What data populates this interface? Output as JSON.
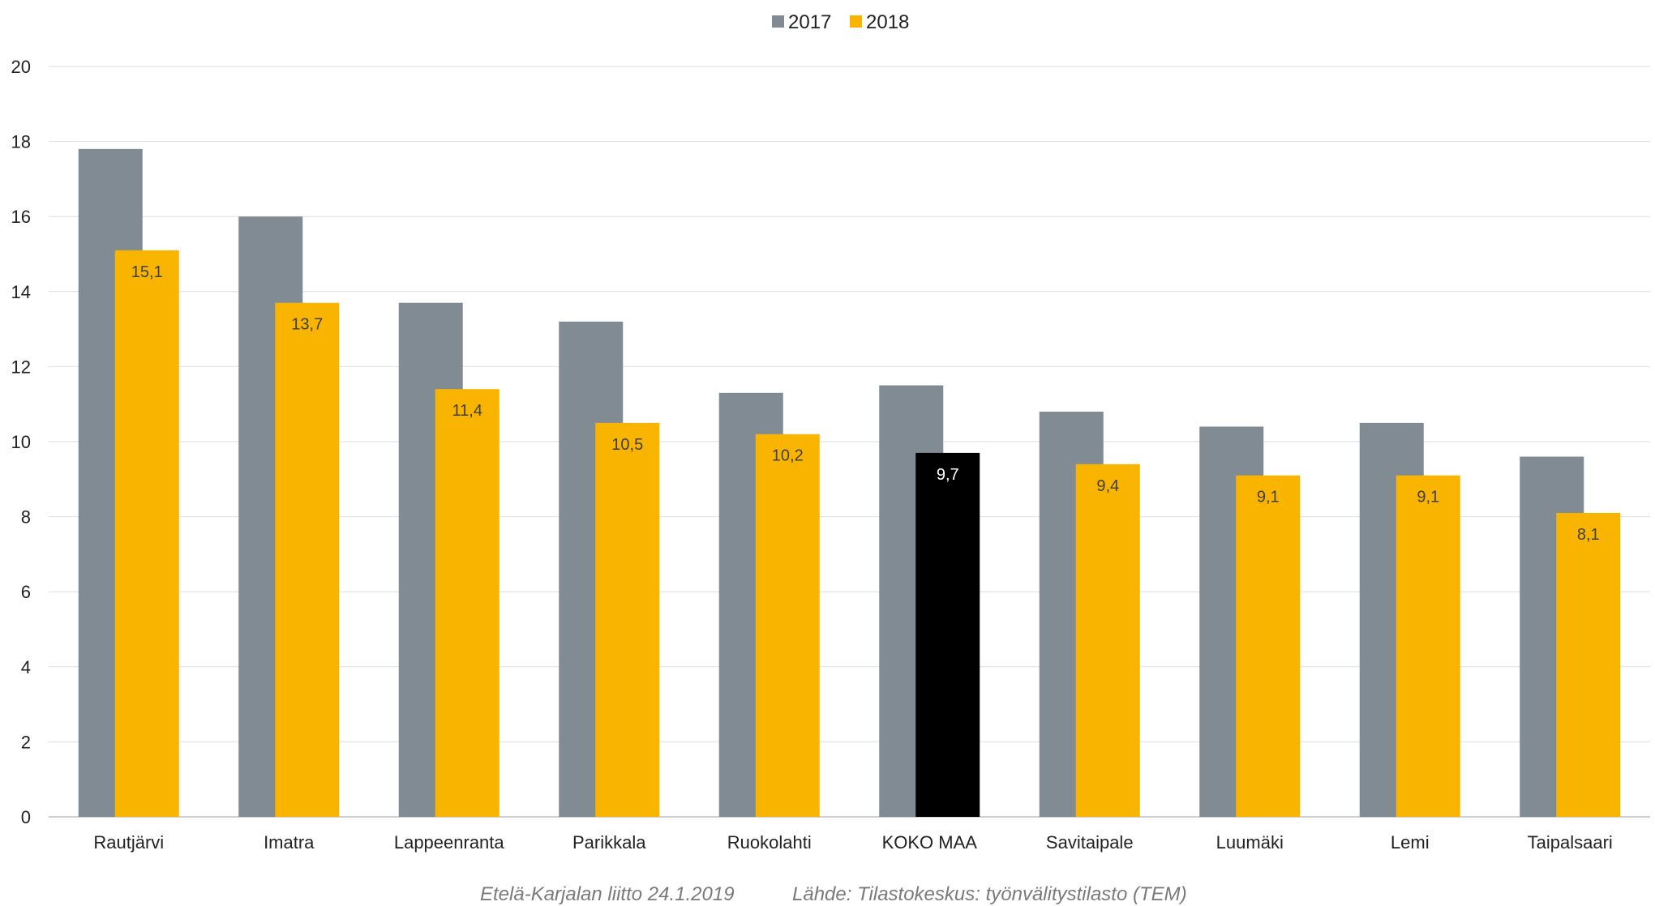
{
  "chart_data": {
    "type": "bar",
    "legend_position": "top-center",
    "grid": true,
    "ylim": [
      0,
      20
    ],
    "y_ticks": [
      "0",
      "2",
      "4",
      "6",
      "8",
      "10",
      "12",
      "14",
      "16",
      "18",
      "20"
    ],
    "categories": [
      "Rautjärvi",
      "Imatra",
      "Lappeenranta",
      "Parikkala",
      "Ruokolahti",
      "KOKO MAA",
      "Savitaipale",
      "Luumäki",
      "Lemi",
      "Taipalsaari"
    ],
    "series": [
      {
        "name": "2017",
        "color": "#808b94",
        "values": [
          17.8,
          16.0,
          13.7,
          13.2,
          11.3,
          11.5,
          10.8,
          10.4,
          10.5,
          9.6
        ]
      },
      {
        "name": "2018",
        "color": "#f9b400",
        "highlight_color": "#000000",
        "highlight_category": "KOKO MAA",
        "values": [
          15.1,
          13.7,
          11.4,
          10.5,
          10.2,
          9.7,
          9.4,
          9.1,
          9.1,
          8.1
        ],
        "data_labels": [
          "15,1",
          "13,7",
          "11,4",
          "10,5",
          "10,2",
          "9,7",
          "9,4",
          "9,1",
          "9,1",
          "8,1"
        ]
      }
    ]
  },
  "footer": {
    "source_org": "Etelä-Karjalan liitto  24.1.2019",
    "source_note": "Lähde: Tilastokeskus: työnvälitystilasto (TEM)"
  }
}
